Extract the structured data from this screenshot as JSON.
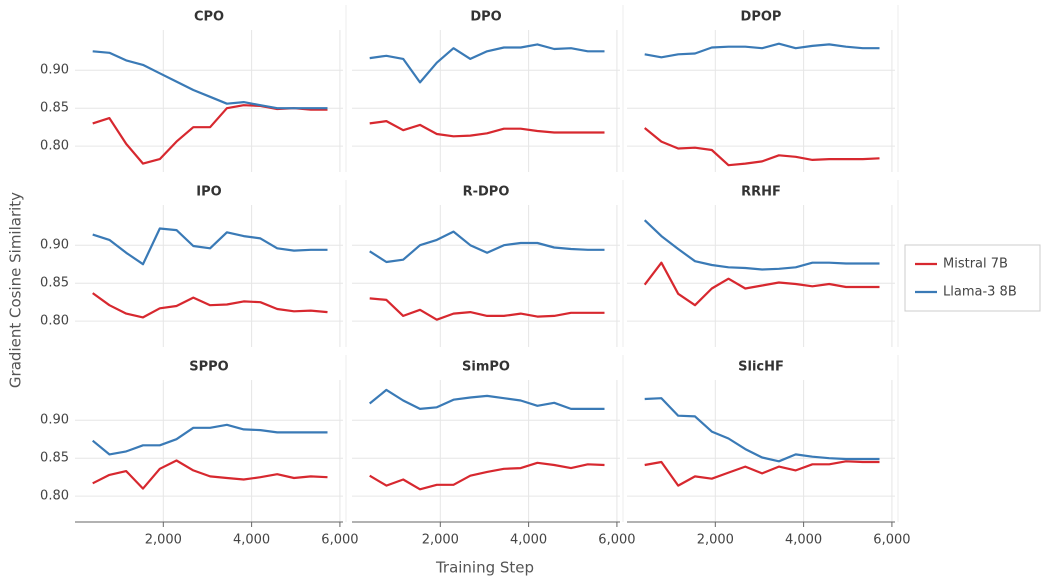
{
  "x_label": "Training Step",
  "y_label": "Gradient Cosine Similarity",
  "legend": [
    {
      "name": "Mistral 7B",
      "color": "#d7282f"
    },
    {
      "name": "Llama-3 8B",
      "color": "#3a7ab6"
    }
  ],
  "chart_data": [
    {
      "type": "line",
      "title": "CPO",
      "x": [
        400,
        780,
        1160,
        1540,
        1920,
        2300,
        2680,
        3060,
        3440,
        3820,
        4200,
        4580,
        4960,
        5340,
        5720
      ],
      "series": [
        {
          "values": [
            0.83,
            0.837,
            0.803,
            0.777,
            0.783,
            0.806,
            0.825,
            0.825,
            0.85,
            0.854,
            0.853,
            0.849,
            0.85,
            0.848,
            0.848
          ]
        },
        {
          "values": [
            0.925,
            0.923,
            0.913,
            0.907,
            0.896,
            0.885,
            0.874,
            0.865,
            0.856,
            0.858,
            0.854,
            0.85,
            0.85,
            0.85,
            0.85
          ]
        }
      ],
      "xlim": [
        0,
        6070
      ],
      "ylim": [
        0.766,
        0.953
      ],
      "xticks": [
        {
          "value": 2000,
          "label": "2,000"
        },
        {
          "value": 4000,
          "label": "4,000"
        },
        {
          "value": 6000,
          "label": "6,000"
        }
      ],
      "yticks": [
        {
          "value": 0.8,
          "label": "0.80"
        },
        0.85,
        {
          "value": 0.9,
          "label": "0.90"
        }
      ],
      "grid": true
    },
    {
      "type": "line",
      "title": "DPO",
      "x": [
        400,
        780,
        1160,
        1540,
        1920,
        2300,
        2680,
        3060,
        3440,
        3820,
        4200,
        4580,
        4960,
        5340,
        5720
      ],
      "series": [
        {
          "values": [
            0.83,
            0.833,
            0.821,
            0.828,
            0.816,
            0.813,
            0.814,
            0.817,
            0.823,
            0.823,
            0.82,
            0.818,
            0.818,
            0.818,
            0.818
          ]
        },
        {
          "values": [
            0.916,
            0.919,
            0.915,
            0.884,
            0.91,
            0.929,
            0.915,
            0.925,
            0.93,
            0.93,
            0.934,
            0.928,
            0.929,
            0.925,
            0.925
          ]
        }
      ],
      "xlim": [
        0,
        6070
      ],
      "ylim": [
        0.766,
        0.953
      ],
      "xticks": [
        {
          "value": 2000,
          "label": "2,000"
        },
        {
          "value": 4000,
          "label": "4,000"
        },
        {
          "value": 6000,
          "label": "6,000"
        }
      ],
      "yticks": [
        {
          "value": 0.8,
          "label": "0.80"
        },
        0.85,
        {
          "value": 0.9,
          "label": "0.90"
        }
      ],
      "grid": true
    },
    {
      "type": "line",
      "title": "DPOP",
      "x": [
        400,
        780,
        1160,
        1540,
        1920,
        2300,
        2680,
        3060,
        3440,
        3820,
        4200,
        4580,
        4960,
        5340,
        5720
      ],
      "series": [
        {
          "values": [
            0.824,
            0.806,
            0.797,
            0.798,
            0.795,
            0.775,
            0.777,
            0.78,
            0.788,
            0.786,
            0.782,
            0.783,
            0.783,
            0.783,
            0.784
          ]
        },
        {
          "values": [
            0.921,
            0.917,
            0.921,
            0.922,
            0.93,
            0.931,
            0.931,
            0.929,
            0.935,
            0.929,
            0.932,
            0.934,
            0.931,
            0.929,
            0.929
          ]
        }
      ],
      "xlim": [
        0,
        6070
      ],
      "ylim": [
        0.766,
        0.953
      ],
      "xticks": [
        {
          "value": 2000,
          "label": "2,000"
        },
        {
          "value": 4000,
          "label": "4,000"
        },
        {
          "value": 6000,
          "label": "6,000"
        }
      ],
      "yticks": [
        {
          "value": 0.8,
          "label": "0.80"
        },
        0.85,
        {
          "value": 0.9,
          "label": "0.90"
        }
      ],
      "grid": true
    },
    {
      "type": "line",
      "title": "IPO",
      "x": [
        400,
        780,
        1160,
        1540,
        1920,
        2300,
        2680,
        3060,
        3440,
        3820,
        4200,
        4580,
        4960,
        5340,
        5720
      ],
      "series": [
        {
          "values": [
            0.837,
            0.821,
            0.81,
            0.805,
            0.817,
            0.82,
            0.831,
            0.821,
            0.822,
            0.826,
            0.825,
            0.816,
            0.813,
            0.814,
            0.812
          ]
        },
        {
          "values": [
            0.914,
            0.907,
            0.89,
            0.875,
            0.922,
            0.92,
            0.899,
            0.896,
            0.917,
            0.912,
            0.909,
            0.896,
            0.893,
            0.894,
            0.894
          ]
        }
      ],
      "xlim": [
        0,
        6070
      ],
      "ylim": [
        0.766,
        0.953
      ],
      "xticks": [
        {
          "value": 2000,
          "label": "2,000"
        },
        {
          "value": 4000,
          "label": "4,000"
        },
        {
          "value": 6000,
          "label": "6,000"
        }
      ],
      "yticks": [
        {
          "value": 0.8,
          "label": "0.80"
        },
        0.85,
        {
          "value": 0.9,
          "label": "0.90"
        }
      ],
      "grid": true
    },
    {
      "type": "line",
      "title": "R-DPO",
      "x": [
        400,
        780,
        1160,
        1540,
        1920,
        2300,
        2680,
        3060,
        3440,
        3820,
        4200,
        4580,
        4960,
        5340,
        5720
      ],
      "series": [
        {
          "values": [
            0.83,
            0.828,
            0.807,
            0.815,
            0.802,
            0.81,
            0.812,
            0.807,
            0.807,
            0.81,
            0.806,
            0.807,
            0.811,
            0.811,
            0.811
          ]
        },
        {
          "values": [
            0.892,
            0.878,
            0.881,
            0.9,
            0.907,
            0.918,
            0.9,
            0.89,
            0.9,
            0.903,
            0.903,
            0.897,
            0.895,
            0.894,
            0.894
          ]
        }
      ],
      "xlim": [
        0,
        6070
      ],
      "ylim": [
        0.766,
        0.953
      ],
      "xticks": [
        {
          "value": 2000,
          "label": "2,000"
        },
        {
          "value": 4000,
          "label": "4,000"
        },
        {
          "value": 6000,
          "label": "6,000"
        }
      ],
      "yticks": [
        {
          "value": 0.8,
          "label": "0.80"
        },
        0.85,
        {
          "value": 0.9,
          "label": "0.90"
        }
      ],
      "grid": true
    },
    {
      "type": "line",
      "title": "RRHF",
      "x": [
        400,
        780,
        1160,
        1540,
        1920,
        2300,
        2680,
        3060,
        3440,
        3820,
        4200,
        4580,
        4960,
        5340,
        5720
      ],
      "series": [
        {
          "values": [
            0.848,
            0.877,
            0.836,
            0.821,
            0.843,
            0.856,
            0.843,
            0.847,
            0.851,
            0.849,
            0.846,
            0.849,
            0.845,
            0.845,
            0.845
          ]
        },
        {
          "values": [
            0.933,
            0.912,
            0.895,
            0.879,
            0.874,
            0.871,
            0.87,
            0.868,
            0.869,
            0.871,
            0.877,
            0.877,
            0.876,
            0.876,
            0.876
          ]
        }
      ],
      "xlim": [
        0,
        6070
      ],
      "ylim": [
        0.766,
        0.953
      ],
      "xticks": [
        {
          "value": 2000,
          "label": "2,000"
        },
        {
          "value": 4000,
          "label": "4,000"
        },
        {
          "value": 6000,
          "label": "6,000"
        }
      ],
      "yticks": [
        {
          "value": 0.8,
          "label": "0.80"
        },
        0.85,
        {
          "value": 0.9,
          "label": "0.90"
        }
      ],
      "grid": true
    },
    {
      "type": "line",
      "title": "SPPO",
      "x": [
        400,
        780,
        1160,
        1540,
        1920,
        2300,
        2680,
        3060,
        3440,
        3820,
        4200,
        4580,
        4960,
        5340,
        5720
      ],
      "series": [
        {
          "values": [
            0.817,
            0.828,
            0.833,
            0.81,
            0.836,
            0.847,
            0.834,
            0.826,
            0.824,
            0.822,
            0.825,
            0.829,
            0.824,
            0.826,
            0.825
          ]
        },
        {
          "values": [
            0.873,
            0.855,
            0.859,
            0.867,
            0.867,
            0.875,
            0.89,
            0.89,
            0.894,
            0.888,
            0.887,
            0.884,
            0.884,
            0.884,
            0.884
          ]
        }
      ],
      "xlim": [
        0,
        6070
      ],
      "ylim": [
        0.766,
        0.953
      ],
      "xticks": [
        {
          "value": 2000,
          "label": "2,000"
        },
        {
          "value": 4000,
          "label": "4,000"
        },
        {
          "value": 6000,
          "label": "6,000"
        }
      ],
      "yticks": [
        {
          "value": 0.8,
          "label": "0.80"
        },
        0.85,
        {
          "value": 0.9,
          "label": "0.90"
        }
      ],
      "grid": true
    },
    {
      "type": "line",
      "title": "SimPO",
      "x": [
        400,
        780,
        1160,
        1540,
        1920,
        2300,
        2680,
        3060,
        3440,
        3820,
        4200,
        4580,
        4960,
        5340,
        5720
      ],
      "series": [
        {
          "values": [
            0.827,
            0.814,
            0.822,
            0.809,
            0.815,
            0.815,
            0.827,
            0.832,
            0.836,
            0.837,
            0.844,
            0.841,
            0.837,
            0.842,
            0.841
          ]
        },
        {
          "values": [
            0.922,
            0.94,
            0.926,
            0.915,
            0.917,
            0.927,
            0.93,
            0.932,
            0.929,
            0.926,
            0.919,
            0.923,
            0.915,
            0.915,
            0.915
          ]
        }
      ],
      "xlim": [
        0,
        6070
      ],
      "ylim": [
        0.766,
        0.953
      ],
      "xticks": [
        {
          "value": 2000,
          "label": "2,000"
        },
        {
          "value": 4000,
          "label": "4,000"
        },
        {
          "value": 6000,
          "label": "6,000"
        }
      ],
      "yticks": [
        {
          "value": 0.8,
          "label": "0.80"
        },
        0.85,
        {
          "value": 0.9,
          "label": "0.90"
        }
      ],
      "grid": true
    },
    {
      "type": "line",
      "title": "SlicHF",
      "x": [
        400,
        780,
        1160,
        1540,
        1920,
        2300,
        2680,
        3060,
        3440,
        3820,
        4200,
        4580,
        4960,
        5340,
        5720
      ],
      "series": [
        {
          "values": [
            0.841,
            0.845,
            0.814,
            0.826,
            0.823,
            0.831,
            0.839,
            0.83,
            0.839,
            0.834,
            0.842,
            0.842,
            0.846,
            0.845,
            0.845
          ]
        },
        {
          "values": [
            0.928,
            0.929,
            0.906,
            0.905,
            0.885,
            0.876,
            0.862,
            0.851,
            0.846,
            0.855,
            0.852,
            0.85,
            0.849,
            0.849,
            0.849
          ]
        }
      ],
      "xlim": [
        0,
        6070
      ],
      "ylim": [
        0.766,
        0.953
      ],
      "xticks": [
        {
          "value": 2000,
          "label": "2,000"
        },
        {
          "value": 4000,
          "label": "4,000"
        },
        {
          "value": 6000,
          "label": "6,000"
        }
      ],
      "yticks": [
        {
          "value": 0.8,
          "label": "0.80"
        },
        0.85,
        {
          "value": 0.9,
          "label": "0.90"
        }
      ],
      "grid": true
    }
  ]
}
